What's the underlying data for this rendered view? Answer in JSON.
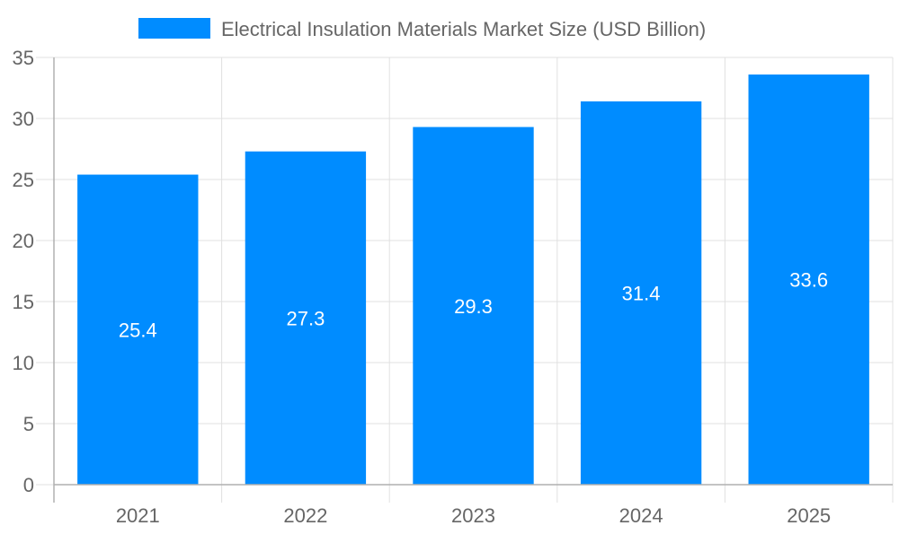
{
  "chart_data": {
    "type": "bar",
    "categories": [
      "2021",
      "2022",
      "2023",
      "2024",
      "2025"
    ],
    "series": [
      {
        "name": "Electrical Insulation Materials Market Size (USD Billion)",
        "values": [
          25.4,
          27.3,
          29.3,
          31.4,
          33.6
        ],
        "color": "#008cff"
      }
    ],
    "ylim": [
      0,
      35
    ],
    "yticks": [
      0,
      5,
      10,
      15,
      20,
      25,
      30,
      35
    ],
    "grid": true,
    "legend": "top",
    "data_labels": true,
    "colors": {
      "grid": "#e0e0e0",
      "axis": "#b0b0b0",
      "text": "#666666",
      "label": "#ffffff"
    }
  }
}
